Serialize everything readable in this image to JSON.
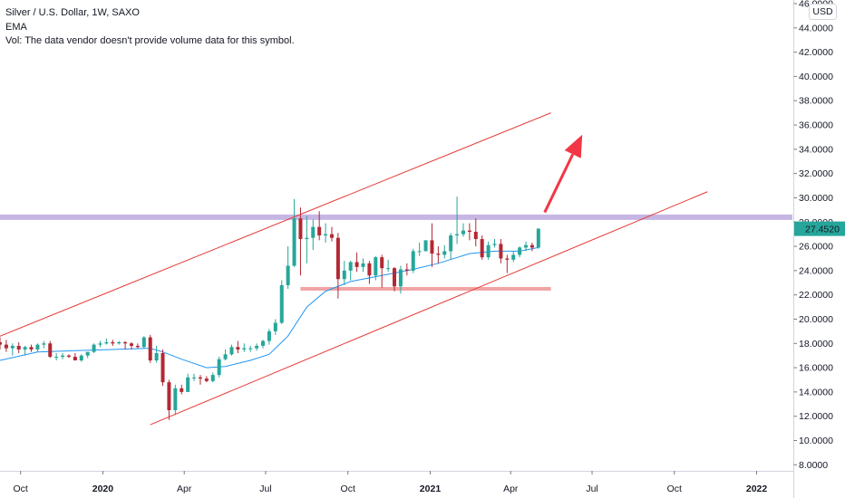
{
  "legend": {
    "title": "Silver / U.S. Dollar, 1W, SAXO",
    "indicator": "EMA",
    "volume_note": "Vol: The data vendor doesn't provide volume data for this symbol."
  },
  "currency_button": "USD",
  "colors": {
    "up": "#26a69a",
    "down": "#b22833",
    "ema": "#2196f3",
    "trendline": "#e53935",
    "resistance": "#b39ddb",
    "support": "#ef9a9a",
    "arrow": "#f23645",
    "price_tag": "#26a69a"
  },
  "chart_data": {
    "type": "candlestick",
    "title": "Silver / U.S. Dollar, 1W, SAXO",
    "y_ticks": [
      "8.0000",
      "10.0000",
      "12.0000",
      "14.0000",
      "16.0000",
      "18.0000",
      "20.0000",
      "22.0000",
      "24.0000",
      "26.0000",
      "28.0000",
      "30.0000",
      "32.0000",
      "34.0000",
      "36.0000",
      "38.0000",
      "40.0000",
      "42.0000",
      "44.0000",
      "46.0000"
    ],
    "x_ticks": [
      {
        "label": "Oct",
        "date": "2019-10-01",
        "bold": false
      },
      {
        "label": "2020",
        "date": "2020-01-01",
        "bold": true
      },
      {
        "label": "Apr",
        "date": "2020-04-01",
        "bold": false
      },
      {
        "label": "Jul",
        "date": "2020-07-01",
        "bold": false
      },
      {
        "label": "Oct",
        "date": "2020-10-01",
        "bold": false
      },
      {
        "label": "2021",
        "date": "2021-01-01",
        "bold": true
      },
      {
        "label": "Apr",
        "date": "2021-04-01",
        "bold": false
      },
      {
        "label": "Jul",
        "date": "2021-07-01",
        "bold": false
      },
      {
        "label": "Oct",
        "date": "2021-10-01",
        "bold": false
      },
      {
        "label": "2022",
        "date": "2022-01-01",
        "bold": true
      }
    ],
    "ylim": [
      7.5,
      46.3
    ],
    "xlim": [
      "2019-09-08",
      "2022-02-10"
    ],
    "last_price": "27.4520",
    "candles": [
      {
        "date": "2019-09-08",
        "o": 18.1,
        "h": 18.5,
        "l": 17.5,
        "c": 17.9
      },
      {
        "date": "2019-09-15",
        "o": 17.9,
        "h": 18.3,
        "l": 17.3,
        "c": 17.6
      },
      {
        "date": "2019-09-22",
        "o": 17.6,
        "h": 18.0,
        "l": 17.0,
        "c": 17.8
      },
      {
        "date": "2019-09-29",
        "o": 17.8,
        "h": 18.1,
        "l": 17.2,
        "c": 17.5
      },
      {
        "date": "2019-10-06",
        "o": 17.5,
        "h": 17.8,
        "l": 17.0,
        "c": 17.7
      },
      {
        "date": "2019-10-13",
        "o": 17.7,
        "h": 17.9,
        "l": 17.3,
        "c": 17.5
      },
      {
        "date": "2019-10-20",
        "o": 17.5,
        "h": 18.0,
        "l": 17.3,
        "c": 17.9
      },
      {
        "date": "2019-10-27",
        "o": 17.9,
        "h": 18.2,
        "l": 17.6,
        "c": 18.0
      },
      {
        "date": "2019-11-03",
        "o": 18.0,
        "h": 18.2,
        "l": 16.8,
        "c": 16.9
      },
      {
        "date": "2019-11-10",
        "o": 16.9,
        "h": 17.2,
        "l": 16.6,
        "c": 16.9
      },
      {
        "date": "2019-11-17",
        "o": 16.9,
        "h": 17.2,
        "l": 16.7,
        "c": 17.0
      },
      {
        "date": "2019-11-24",
        "o": 17.0,
        "h": 17.1,
        "l": 16.8,
        "c": 16.9
      },
      {
        "date": "2019-12-01",
        "o": 16.9,
        "h": 17.2,
        "l": 16.6,
        "c": 16.6
      },
      {
        "date": "2019-12-08",
        "o": 16.6,
        "h": 17.1,
        "l": 16.5,
        "c": 17.0
      },
      {
        "date": "2019-12-15",
        "o": 17.0,
        "h": 17.3,
        "l": 16.8,
        "c": 17.3
      },
      {
        "date": "2019-12-22",
        "o": 17.3,
        "h": 18.0,
        "l": 17.2,
        "c": 17.9
      },
      {
        "date": "2019-12-29",
        "o": 17.9,
        "h": 18.2,
        "l": 17.7,
        "c": 18.0
      },
      {
        "date": "2020-01-05",
        "o": 18.0,
        "h": 18.4,
        "l": 17.9,
        "c": 18.1
      },
      {
        "date": "2020-01-12",
        "o": 18.1,
        "h": 18.3,
        "l": 17.8,
        "c": 18.0
      },
      {
        "date": "2020-01-19",
        "o": 18.0,
        "h": 18.2,
        "l": 17.9,
        "c": 18.1
      },
      {
        "date": "2020-01-26",
        "o": 18.1,
        "h": 18.2,
        "l": 17.5,
        "c": 18.0
      },
      {
        "date": "2020-02-02",
        "o": 18.0,
        "h": 18.1,
        "l": 17.5,
        "c": 17.8
      },
      {
        "date": "2020-02-09",
        "o": 17.8,
        "h": 18.0,
        "l": 17.6,
        "c": 17.7
      },
      {
        "date": "2020-02-16",
        "o": 17.7,
        "h": 18.6,
        "l": 17.6,
        "c": 18.5
      },
      {
        "date": "2020-02-23",
        "o": 18.5,
        "h": 18.7,
        "l": 16.4,
        "c": 16.6
      },
      {
        "date": "2020-03-01",
        "o": 16.6,
        "h": 17.8,
        "l": 16.4,
        "c": 17.2
      },
      {
        "date": "2020-03-08",
        "o": 17.2,
        "h": 17.5,
        "l": 14.5,
        "c": 14.8
      },
      {
        "date": "2020-03-15",
        "o": 14.8,
        "h": 15.0,
        "l": 11.7,
        "c": 12.5
      },
      {
        "date": "2020-03-22",
        "o": 12.5,
        "h": 14.6,
        "l": 12.1,
        "c": 14.3
      },
      {
        "date": "2020-03-29",
        "o": 14.3,
        "h": 14.6,
        "l": 13.8,
        "c": 14.0
      },
      {
        "date": "2020-04-05",
        "o": 14.0,
        "h": 15.5,
        "l": 14.0,
        "c": 15.2
      },
      {
        "date": "2020-04-12",
        "o": 15.2,
        "h": 15.5,
        "l": 14.9,
        "c": 15.2
      },
      {
        "date": "2020-04-19",
        "o": 15.2,
        "h": 15.4,
        "l": 14.6,
        "c": 15.1
      },
      {
        "date": "2020-04-26",
        "o": 15.1,
        "h": 15.3,
        "l": 14.8,
        "c": 14.9
      },
      {
        "date": "2020-05-03",
        "o": 14.9,
        "h": 15.6,
        "l": 14.8,
        "c": 15.4
      },
      {
        "date": "2020-05-10",
        "o": 15.4,
        "h": 16.9,
        "l": 15.2,
        "c": 16.7
      },
      {
        "date": "2020-05-17",
        "o": 16.7,
        "h": 17.5,
        "l": 16.6,
        "c": 17.1
      },
      {
        "date": "2020-05-24",
        "o": 17.1,
        "h": 17.9,
        "l": 17.0,
        "c": 17.7
      },
      {
        "date": "2020-05-31",
        "o": 17.7,
        "h": 18.2,
        "l": 17.2,
        "c": 17.5
      },
      {
        "date": "2020-06-07",
        "o": 17.5,
        "h": 18.0,
        "l": 17.3,
        "c": 17.6
      },
      {
        "date": "2020-06-14",
        "o": 17.6,
        "h": 17.8,
        "l": 17.3,
        "c": 17.6
      },
      {
        "date": "2020-06-21",
        "o": 17.6,
        "h": 18.0,
        "l": 17.4,
        "c": 17.8
      },
      {
        "date": "2020-06-28",
        "o": 17.8,
        "h": 18.3,
        "l": 17.6,
        "c": 18.2
      },
      {
        "date": "2020-07-05",
        "o": 18.2,
        "h": 19.2,
        "l": 17.9,
        "c": 19.0
      },
      {
        "date": "2020-07-12",
        "o": 19.0,
        "h": 20.0,
        "l": 18.7,
        "c": 19.7
      },
      {
        "date": "2020-07-19",
        "o": 19.7,
        "h": 23.2,
        "l": 19.6,
        "c": 22.8
      },
      {
        "date": "2020-07-26",
        "o": 22.8,
        "h": 26.0,
        "l": 22.5,
        "c": 24.4
      },
      {
        "date": "2020-08-02",
        "o": 24.4,
        "h": 29.9,
        "l": 24.3,
        "c": 28.3
      },
      {
        "date": "2020-08-09",
        "o": 28.3,
        "h": 29.2,
        "l": 23.6,
        "c": 26.6
      },
      {
        "date": "2020-08-16",
        "o": 26.6,
        "h": 28.5,
        "l": 24.6,
        "c": 26.7
      },
      {
        "date": "2020-08-23",
        "o": 26.7,
        "h": 28.2,
        "l": 25.7,
        "c": 27.6
      },
      {
        "date": "2020-08-30",
        "o": 27.6,
        "h": 28.9,
        "l": 26.5,
        "c": 26.9
      },
      {
        "date": "2020-09-06",
        "o": 26.9,
        "h": 27.9,
        "l": 26.3,
        "c": 27.0
      },
      {
        "date": "2020-09-13",
        "o": 27.0,
        "h": 27.6,
        "l": 26.4,
        "c": 26.7
      },
      {
        "date": "2020-09-20",
        "o": 26.7,
        "h": 27.1,
        "l": 21.7,
        "c": 23.3
      },
      {
        "date": "2020-09-27",
        "o": 23.3,
        "h": 24.8,
        "l": 22.8,
        "c": 24.0
      },
      {
        "date": "2020-10-04",
        "o": 24.0,
        "h": 24.8,
        "l": 23.2,
        "c": 24.7
      },
      {
        "date": "2020-10-11",
        "o": 24.7,
        "h": 25.5,
        "l": 23.9,
        "c": 24.3
      },
      {
        "date": "2020-10-18",
        "o": 24.3,
        "h": 25.0,
        "l": 23.9,
        "c": 24.6
      },
      {
        "date": "2020-10-25",
        "o": 24.6,
        "h": 24.8,
        "l": 22.9,
        "c": 23.6
      },
      {
        "date": "2020-11-01",
        "o": 23.6,
        "h": 25.2,
        "l": 23.2,
        "c": 25.1
      },
      {
        "date": "2020-11-08",
        "o": 25.1,
        "h": 25.3,
        "l": 22.6,
        "c": 24.2
      },
      {
        "date": "2020-11-15",
        "o": 24.2,
        "h": 24.9,
        "l": 23.9,
        "c": 24.2
      },
      {
        "date": "2020-11-22",
        "o": 24.2,
        "h": 24.3,
        "l": 22.3,
        "c": 22.7
      },
      {
        "date": "2020-11-29",
        "o": 22.7,
        "h": 24.4,
        "l": 22.1,
        "c": 24.1
      },
      {
        "date": "2020-12-06",
        "o": 24.1,
        "h": 24.6,
        "l": 23.6,
        "c": 24.0
      },
      {
        "date": "2020-12-13",
        "o": 24.0,
        "h": 25.8,
        "l": 23.8,
        "c": 25.6
      },
      {
        "date": "2020-12-20",
        "o": 25.6,
        "h": 26.3,
        "l": 25.2,
        "c": 25.6
      },
      {
        "date": "2020-12-27",
        "o": 25.6,
        "h": 26.5,
        "l": 25.6,
        "c": 26.5
      },
      {
        "date": "2021-01-03",
        "o": 26.5,
        "h": 27.9,
        "l": 24.3,
        "c": 25.4
      },
      {
        "date": "2021-01-10",
        "o": 25.4,
        "h": 26.0,
        "l": 24.6,
        "c": 25.3
      },
      {
        "date": "2021-01-17",
        "o": 25.3,
        "h": 26.1,
        "l": 25.0,
        "c": 25.6
      },
      {
        "date": "2021-01-24",
        "o": 25.6,
        "h": 27.1,
        "l": 24.9,
        "c": 26.9
      },
      {
        "date": "2021-01-31",
        "o": 26.9,
        "h": 30.1,
        "l": 26.2,
        "c": 27.0
      },
      {
        "date": "2021-02-07",
        "o": 27.0,
        "h": 27.9,
        "l": 26.8,
        "c": 27.3
      },
      {
        "date": "2021-02-14",
        "o": 27.3,
        "h": 27.9,
        "l": 26.5,
        "c": 27.2
      },
      {
        "date": "2021-02-21",
        "o": 27.2,
        "h": 28.3,
        "l": 26.0,
        "c": 26.6
      },
      {
        "date": "2021-02-28",
        "o": 26.6,
        "h": 26.9,
        "l": 24.9,
        "c": 25.1
      },
      {
        "date": "2021-03-07",
        "o": 25.1,
        "h": 26.4,
        "l": 24.9,
        "c": 26.1
      },
      {
        "date": "2021-03-14",
        "o": 26.1,
        "h": 26.6,
        "l": 25.9,
        "c": 26.2
      },
      {
        "date": "2021-03-21",
        "o": 26.2,
        "h": 26.6,
        "l": 24.6,
        "c": 25.0
      },
      {
        "date": "2021-03-28",
        "o": 25.0,
        "h": 25.3,
        "l": 23.8,
        "c": 24.9
      },
      {
        "date": "2021-04-04",
        "o": 24.9,
        "h": 25.6,
        "l": 24.7,
        "c": 25.3
      },
      {
        "date": "2021-04-11",
        "o": 25.3,
        "h": 26.0,
        "l": 25.1,
        "c": 25.9
      },
      {
        "date": "2021-04-18",
        "o": 25.9,
        "h": 26.4,
        "l": 25.6,
        "c": 26.1
      },
      {
        "date": "2021-04-25",
        "o": 26.1,
        "h": 26.3,
        "l": 25.6,
        "c": 25.9
      },
      {
        "date": "2021-05-02",
        "o": 25.9,
        "h": 27.5,
        "l": 25.8,
        "c": 27.45
      }
    ],
    "ema": [
      {
        "date": "2019-09-08",
        "v": 16.6
      },
      {
        "date": "2019-10-20",
        "v": 17.3
      },
      {
        "date": "2019-12-01",
        "v": 17.4
      },
      {
        "date": "2020-01-12",
        "v": 17.5
      },
      {
        "date": "2020-02-23",
        "v": 17.6
      },
      {
        "date": "2020-03-08",
        "v": 17.3
      },
      {
        "date": "2020-03-29",
        "v": 16.7
      },
      {
        "date": "2020-04-26",
        "v": 16.0
      },
      {
        "date": "2020-05-17",
        "v": 16.1
      },
      {
        "date": "2020-06-14",
        "v": 16.6
      },
      {
        "date": "2020-07-05",
        "v": 17.1
      },
      {
        "date": "2020-07-26",
        "v": 18.6
      },
      {
        "date": "2020-08-16",
        "v": 21.0
      },
      {
        "date": "2020-09-06",
        "v": 22.3
      },
      {
        "date": "2020-10-04",
        "v": 23.1
      },
      {
        "date": "2020-11-08",
        "v": 23.6
      },
      {
        "date": "2020-12-13",
        "v": 24.1
      },
      {
        "date": "2021-01-10",
        "v": 24.6
      },
      {
        "date": "2021-02-14",
        "v": 25.4
      },
      {
        "date": "2021-03-14",
        "v": 25.6
      },
      {
        "date": "2021-04-11",
        "v": 25.6
      },
      {
        "date": "2021-05-02",
        "v": 25.9
      }
    ],
    "annotations": {
      "upper_trendline": [
        {
          "date": "2019-09-08",
          "v": 18.6
        },
        {
          "date": "2021-05-16",
          "v": 37.0
        }
      ],
      "lower_trendline": [
        {
          "date": "2020-02-23",
          "v": 11.3
        },
        {
          "date": "2021-11-07",
          "v": 30.5
        }
      ],
      "resistance_level": 28.4,
      "support_level": {
        "from": "2020-08-09",
        "to": "2021-05-16",
        "v": 22.5
      },
      "arrow": {
        "from": {
          "date": "2021-05-09",
          "v": 28.8
        },
        "to": {
          "date": "2021-06-20",
          "v": 35.2
        }
      }
    }
  }
}
